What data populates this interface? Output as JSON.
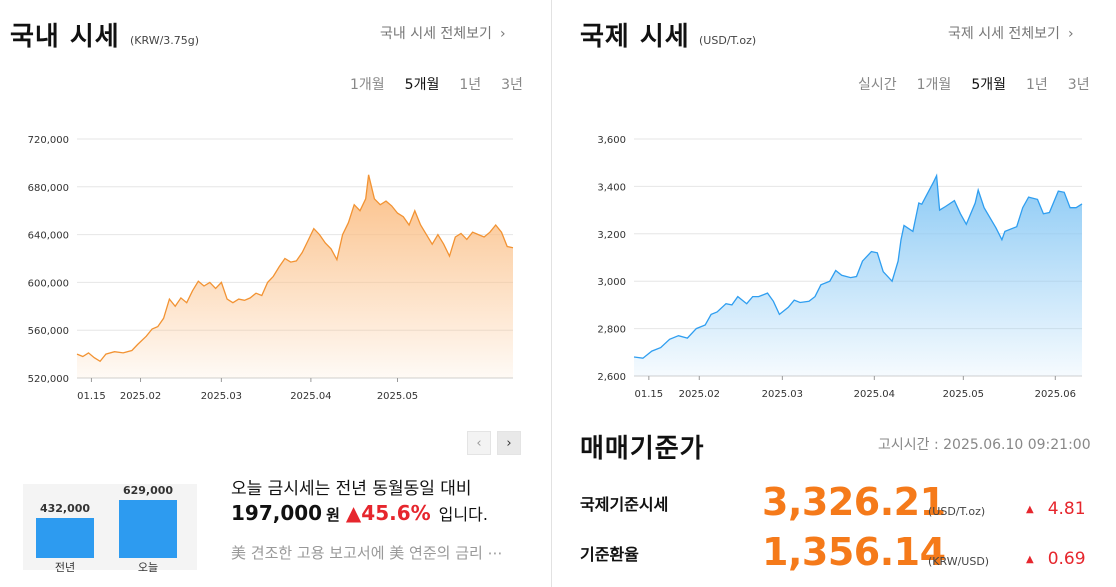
{
  "colors": {
    "domestic_line": "#f29333",
    "domestic_fill": "#fbbf86",
    "intl_line": "#2f9ef0",
    "intl_fill": "#8ccaf5",
    "bar": "#2d9bf0",
    "rate_value": "#f57a1a",
    "up": "#e6262d"
  },
  "domestic": {
    "title": "국내 시세",
    "unit": "(KRW/3.75g)",
    "more_link": "국내 시세 전체보기",
    "more_icon": "chevron-right-icon",
    "tabs": [
      "1개월",
      "5개월",
      "1년",
      "3년"
    ],
    "active_tab": "5개월",
    "pager": {
      "prev_icon": "chevron-left-icon",
      "next_icon": "chevron-right-icon"
    },
    "summary": {
      "line1": "오늘 금시세는 전년 동월동일 대비",
      "amount": "197,000",
      "amount_unit": "원",
      "change": "▲45.6%",
      "tail": "입니다.",
      "news": "美 견조한 고용 보고서에 美 연준의 금리 ⋯"
    }
  },
  "international": {
    "title": "국제 시세",
    "unit": "(USD/T.oz)",
    "more_link": "국제 시세 전체보기",
    "more_icon": "chevron-right-icon",
    "tabs": [
      "실시간",
      "1개월",
      "5개월",
      "1년",
      "3년"
    ],
    "active_tab": "5개월"
  },
  "trade": {
    "title": "매매기준가",
    "notice_time": "고시시간 : 2025.06.10 09:21:00",
    "rows": [
      {
        "label": "국제기준시세",
        "value": "3,326.21",
        "unit": "(USD/T.oz)",
        "change": "4.81"
      },
      {
        "label": "기준환율",
        "value": "1,356.14",
        "unit": "(KRW/USD)",
        "change": "0.69"
      }
    ]
  },
  "chart_data": [
    {
      "type": "area",
      "ylim": [
        520000,
        720000
      ],
      "yticks": [
        520000,
        560000,
        600000,
        640000,
        680000,
        720000
      ],
      "ytick_labels": [
        "520,000",
        "560,000",
        "600,000",
        "640,000",
        "680,000",
        "720,000"
      ],
      "x_range": [
        "2025-01-10",
        "2025-06-10"
      ],
      "xticks": [
        {
          "date": "2025-01-15",
          "label": "01.15"
        },
        {
          "date": "2025-02-01",
          "label": "2025.02"
        },
        {
          "date": "2025-03-01",
          "label": "2025.03"
        },
        {
          "date": "2025-04-01",
          "label": "2025.04"
        },
        {
          "date": "2025-05-01",
          "label": "2025.05"
        }
      ],
      "grid": true,
      "points": [
        [
          "2025-01-10",
          540000
        ],
        [
          "2025-01-12",
          538000
        ],
        [
          "2025-01-14",
          541000
        ],
        [
          "2025-01-16",
          537000
        ],
        [
          "2025-01-18",
          534000
        ],
        [
          "2025-01-20",
          540000
        ],
        [
          "2025-01-23",
          542000
        ],
        [
          "2025-01-26",
          541000
        ],
        [
          "2025-01-29",
          543000
        ],
        [
          "2025-01-31",
          548000
        ],
        [
          "2025-02-03",
          555000
        ],
        [
          "2025-02-05",
          561000
        ],
        [
          "2025-02-07",
          563000
        ],
        [
          "2025-02-09",
          570000
        ],
        [
          "2025-02-11",
          586000
        ],
        [
          "2025-02-13",
          580000
        ],
        [
          "2025-02-15",
          587000
        ],
        [
          "2025-02-17",
          583000
        ],
        [
          "2025-02-19",
          593000
        ],
        [
          "2025-02-21",
          601000
        ],
        [
          "2025-02-23",
          597000
        ],
        [
          "2025-02-25",
          600000
        ],
        [
          "2025-02-27",
          595000
        ],
        [
          "2025-03-01",
          600000
        ],
        [
          "2025-03-03",
          586000
        ],
        [
          "2025-03-05",
          583000
        ],
        [
          "2025-03-07",
          586000
        ],
        [
          "2025-03-09",
          585000
        ],
        [
          "2025-03-11",
          587000
        ],
        [
          "2025-03-13",
          591000
        ],
        [
          "2025-03-15",
          589000
        ],
        [
          "2025-03-17",
          600000
        ],
        [
          "2025-03-19",
          605000
        ],
        [
          "2025-03-21",
          613000
        ],
        [
          "2025-03-23",
          620000
        ],
        [
          "2025-03-25",
          617000
        ],
        [
          "2025-03-27",
          618000
        ],
        [
          "2025-03-29",
          625000
        ],
        [
          "2025-03-31",
          635000
        ],
        [
          "2025-04-02",
          645000
        ],
        [
          "2025-04-04",
          640000
        ],
        [
          "2025-04-06",
          633000
        ],
        [
          "2025-04-08",
          628000
        ],
        [
          "2025-04-10",
          619000
        ],
        [
          "2025-04-12",
          640000
        ],
        [
          "2025-04-14",
          650000
        ],
        [
          "2025-04-16",
          665000
        ],
        [
          "2025-04-18",
          660000
        ],
        [
          "2025-04-20",
          670000
        ],
        [
          "2025-04-21",
          690000
        ],
        [
          "2025-04-23",
          670000
        ],
        [
          "2025-04-25",
          665000
        ],
        [
          "2025-04-27",
          668000
        ],
        [
          "2025-04-29",
          664000
        ],
        [
          "2025-05-01",
          658000
        ],
        [
          "2025-05-03",
          655000
        ],
        [
          "2025-05-05",
          648000
        ],
        [
          "2025-05-07",
          660000
        ],
        [
          "2025-05-09",
          648000
        ],
        [
          "2025-05-11",
          640000
        ],
        [
          "2025-05-13",
          632000
        ],
        [
          "2025-05-15",
          640000
        ],
        [
          "2025-05-17",
          632000
        ],
        [
          "2025-05-19",
          622000
        ],
        [
          "2025-05-21",
          638000
        ],
        [
          "2025-05-23",
          641000
        ],
        [
          "2025-05-25",
          636000
        ],
        [
          "2025-05-27",
          642000
        ],
        [
          "2025-05-29",
          640000
        ],
        [
          "2025-05-31",
          638000
        ],
        [
          "2025-06-02",
          642000
        ],
        [
          "2025-06-04",
          648000
        ],
        [
          "2025-06-06",
          642000
        ],
        [
          "2025-06-08",
          630000
        ],
        [
          "2025-06-10",
          629000
        ]
      ]
    },
    {
      "type": "area",
      "ylim": [
        2600,
        3600
      ],
      "yticks": [
        2600,
        2800,
        3000,
        3200,
        3400,
        3600
      ],
      "ytick_labels": [
        "2,600",
        "2,800",
        "3,000",
        "3,200",
        "3,400",
        "3,600"
      ],
      "x_range": [
        "2025-01-10",
        "2025-06-10"
      ],
      "xticks": [
        {
          "date": "2025-01-15",
          "label": "01.15"
        },
        {
          "date": "2025-02-01",
          "label": "2025.02"
        },
        {
          "date": "2025-03-01",
          "label": "2025.03"
        },
        {
          "date": "2025-04-01",
          "label": "2025.04"
        },
        {
          "date": "2025-05-01",
          "label": "2025.05"
        },
        {
          "date": "2025-06-01",
          "label": "2025.06"
        }
      ],
      "grid": true,
      "points": [
        [
          "2025-01-10",
          2680
        ],
        [
          "2025-01-13",
          2675
        ],
        [
          "2025-01-16",
          2705
        ],
        [
          "2025-01-19",
          2720
        ],
        [
          "2025-01-22",
          2755
        ],
        [
          "2025-01-25",
          2770
        ],
        [
          "2025-01-28",
          2760
        ],
        [
          "2025-01-31",
          2800
        ],
        [
          "2025-02-03",
          2815
        ],
        [
          "2025-02-05",
          2860
        ],
        [
          "2025-02-07",
          2870
        ],
        [
          "2025-02-10",
          2905
        ],
        [
          "2025-02-12",
          2900
        ],
        [
          "2025-02-14",
          2935
        ],
        [
          "2025-02-17",
          2905
        ],
        [
          "2025-02-19",
          2935
        ],
        [
          "2025-02-21",
          2935
        ],
        [
          "2025-02-24",
          2950
        ],
        [
          "2025-02-26",
          2915
        ],
        [
          "2025-02-28",
          2860
        ],
        [
          "2025-03-03",
          2890
        ],
        [
          "2025-03-05",
          2920
        ],
        [
          "2025-03-07",
          2910
        ],
        [
          "2025-03-10",
          2915
        ],
        [
          "2025-03-12",
          2935
        ],
        [
          "2025-03-14",
          2985
        ],
        [
          "2025-03-17",
          3000
        ],
        [
          "2025-03-19",
          3045
        ],
        [
          "2025-03-21",
          3025
        ],
        [
          "2025-03-24",
          3015
        ],
        [
          "2025-03-26",
          3020
        ],
        [
          "2025-03-28",
          3085
        ],
        [
          "2025-03-31",
          3125
        ],
        [
          "2025-04-02",
          3120
        ],
        [
          "2025-04-04",
          3040
        ],
        [
          "2025-04-07",
          3000
        ],
        [
          "2025-04-09",
          3085
        ],
        [
          "2025-04-10",
          3175
        ],
        [
          "2025-04-11",
          3235
        ],
        [
          "2025-04-14",
          3210
        ],
        [
          "2025-04-16",
          3330
        ],
        [
          "2025-04-17",
          3325
        ],
        [
          "2025-04-21",
          3420
        ],
        [
          "2025-04-22",
          3445
        ],
        [
          "2025-04-23",
          3300
        ],
        [
          "2025-04-25",
          3315
        ],
        [
          "2025-04-28",
          3340
        ],
        [
          "2025-04-30",
          3285
        ],
        [
          "2025-05-02",
          3240
        ],
        [
          "2025-05-05",
          3330
        ],
        [
          "2025-05-06",
          3385
        ],
        [
          "2025-05-08",
          3310
        ],
        [
          "2025-05-12",
          3225
        ],
        [
          "2025-05-14",
          3175
        ],
        [
          "2025-05-15",
          3210
        ],
        [
          "2025-05-19",
          3230
        ],
        [
          "2025-05-21",
          3310
        ],
        [
          "2025-05-23",
          3355
        ],
        [
          "2025-05-26",
          3345
        ],
        [
          "2025-05-28",
          3285
        ],
        [
          "2025-05-30",
          3290
        ],
        [
          "2025-06-02",
          3380
        ],
        [
          "2025-06-04",
          3375
        ],
        [
          "2025-06-06",
          3310
        ],
        [
          "2025-06-08",
          3310
        ],
        [
          "2025-06-10",
          3326
        ]
      ]
    },
    {
      "type": "bar",
      "categories": [
        "전년",
        "오늘"
      ],
      "values": [
        432000,
        629000
      ],
      "value_labels": [
        "432,000",
        "629,000"
      ]
    }
  ]
}
